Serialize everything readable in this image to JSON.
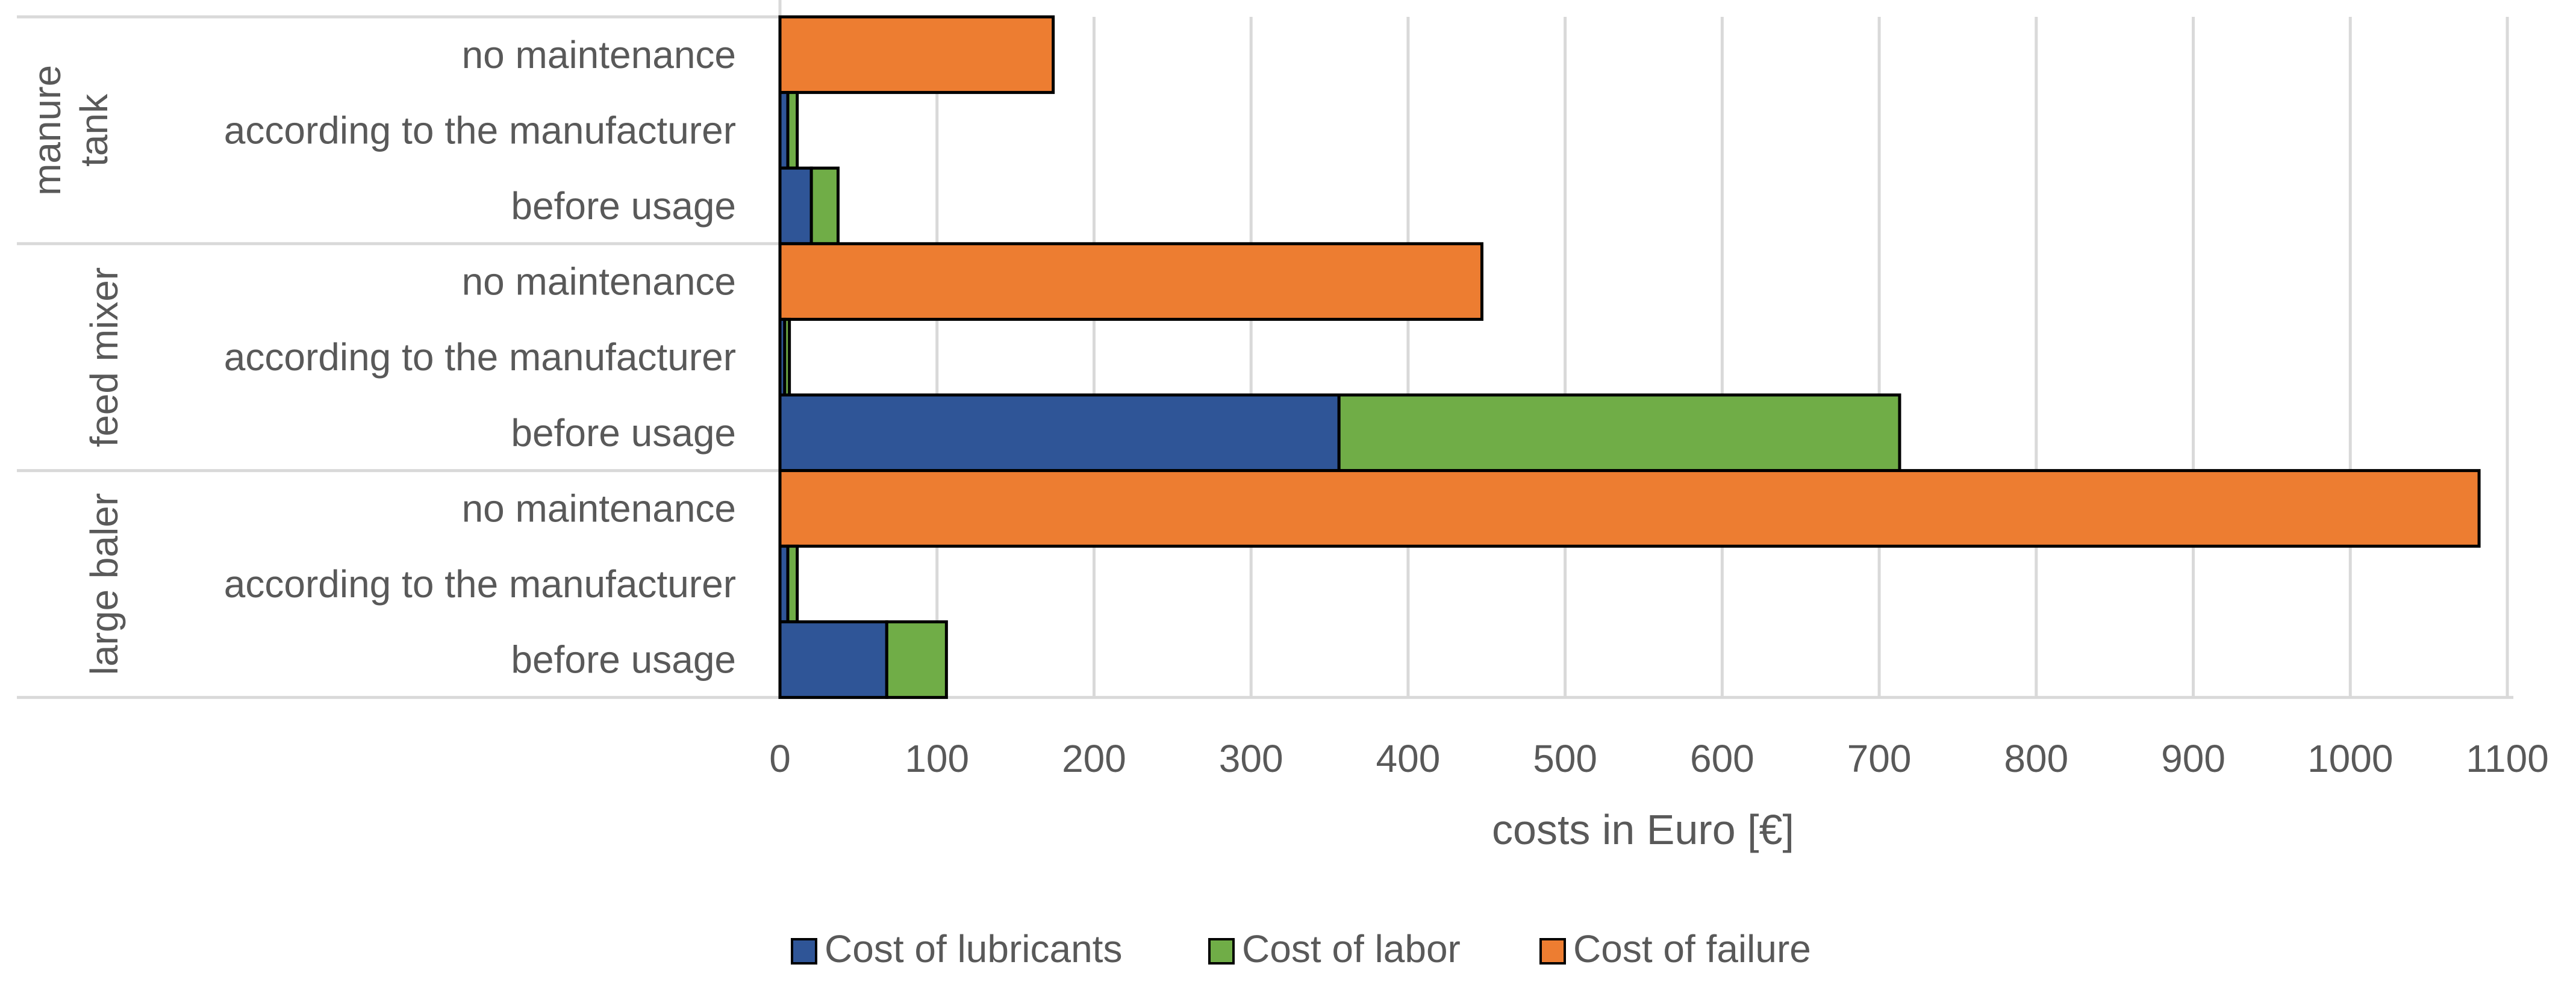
{
  "chart_data": {
    "type": "bar",
    "orientation": "horizontal",
    "stacked": true,
    "title": "",
    "xlabel": "costs in Euro [€]",
    "ylabel": "",
    "xlim": [
      0,
      1100
    ],
    "xticks": [
      0,
      100,
      200,
      300,
      400,
      500,
      600,
      700,
      800,
      900,
      1000,
      1100
    ],
    "grid": true,
    "legend_position": "bottom",
    "groups": [
      {
        "name": "manure tank",
        "name_lines": [
          "manure",
          "tank"
        ],
        "categories": [
          "no maintenance",
          "according to the manufacturer",
          "before usage"
        ],
        "lubricants": [
          0,
          5,
          20
        ],
        "labor": [
          0,
          6,
          17
        ],
        "failure": [
          174,
          0,
          0
        ]
      },
      {
        "name": "feed mixer",
        "name_lines": [
          "feed mixer"
        ],
        "categories": [
          "no maintenance",
          "according to the manufacturer",
          "before usage"
        ],
        "lubricants": [
          0,
          3,
          356
        ],
        "labor": [
          0,
          3,
          357
        ],
        "failure": [
          447,
          0,
          0
        ]
      },
      {
        "name": "large baler",
        "name_lines": [
          "large baler"
        ],
        "categories": [
          "no maintenance",
          "according to the manufacturer",
          "before usage"
        ],
        "lubricants": [
          0,
          5,
          68
        ],
        "labor": [
          0,
          6,
          38
        ],
        "failure": [
          1082,
          0,
          0
        ]
      }
    ],
    "series": [
      {
        "name": "Cost of lubricants",
        "key": "lubricants",
        "color": "#2f5597"
      },
      {
        "name": "Cost of labor",
        "key": "labor",
        "color": "#70ad47"
      },
      {
        "name": "Cost of failure",
        "key": "failure",
        "color": "#ed7d31"
      }
    ],
    "gridline_color": "#d9d9d9",
    "border_color": "#000000"
  }
}
